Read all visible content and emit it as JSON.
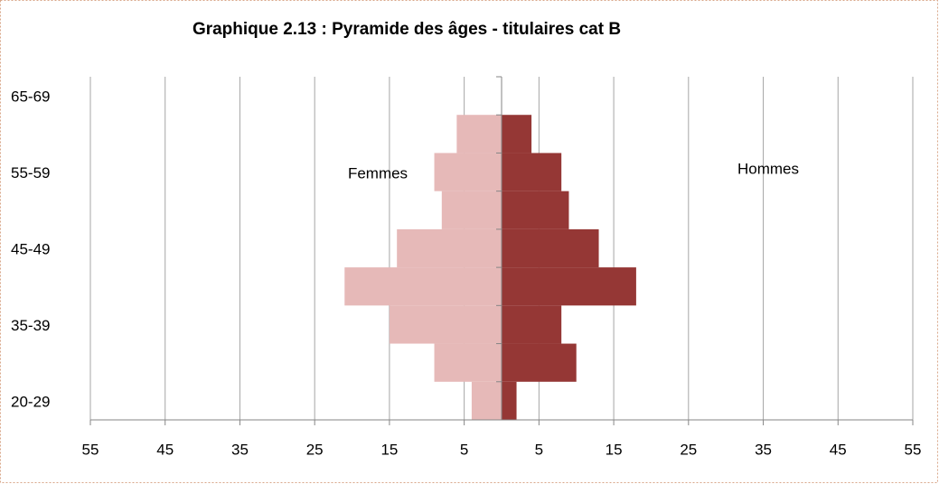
{
  "chart_data": {
    "type": "pyramid",
    "title": "Graphique 2.13 : Pyramide des âges - titulaires cat B",
    "categories": [
      "20-29",
      null,
      "35-39",
      null,
      "45-49",
      null,
      "55-59",
      null,
      "65-69"
    ],
    "series": [
      {
        "name": "Femmes",
        "color": "#e6b9b8",
        "values": [
          -4,
          -9,
          -15,
          -21,
          -14,
          -8,
          -9,
          -6,
          0
        ]
      },
      {
        "name": "Hommes",
        "color": "#953735",
        "values": [
          2,
          10,
          8,
          18,
          13,
          9,
          8,
          4,
          0
        ]
      }
    ],
    "xlim": [
      -55,
      55
    ],
    "xticks": [
      {
        "value": -55,
        "label": "55"
      },
      {
        "value": -45,
        "label": "45"
      },
      {
        "value": -35,
        "label": "35"
      },
      {
        "value": -25,
        "label": "25"
      },
      {
        "value": -15,
        "label": "15"
      },
      {
        "value": -5,
        "label": "5"
      },
      5,
      15,
      25,
      35,
      45,
      55
    ],
    "grid": true
  }
}
